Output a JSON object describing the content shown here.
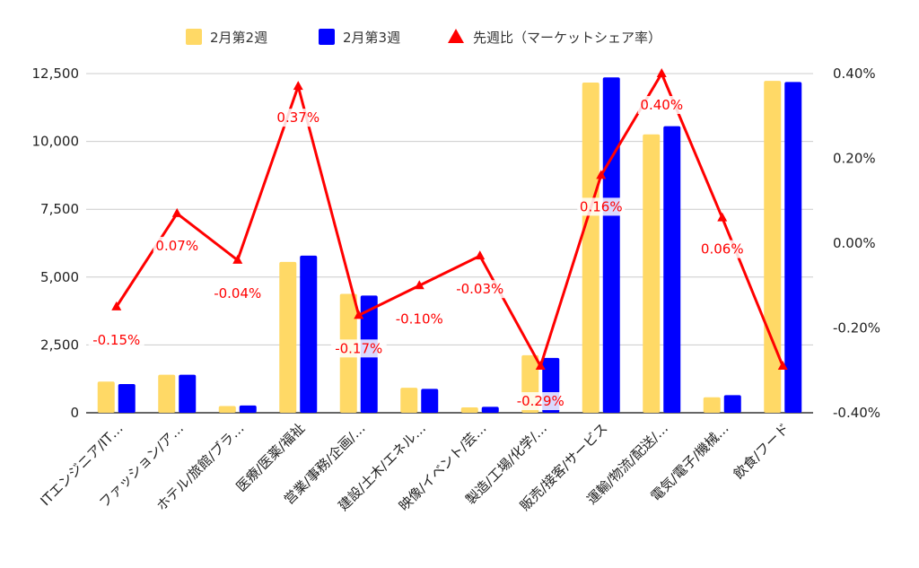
{
  "chart_data": {
    "type": "bar",
    "categories": [
      "ITエンジニア/IT…",
      "ファッション/ア…",
      "ホテル/旅館/ブラ…",
      "医療/医薬/福祉",
      "営業/事務/企画/…",
      "建設/土木/エネル…",
      "映像/イベント/芸…",
      "製造/工場/化学/…",
      "販売/接客/サービス",
      "運輸/物流/配送/…",
      "電気/電子/機械…",
      "飲食/フード"
    ],
    "series": [
      {
        "name": "2月第2週",
        "color": "#ffd966",
        "axis": "left",
        "type": "bar",
        "values": [
          1150,
          1400,
          250,
          5560,
          4380,
          920,
          200,
          2120,
          12170,
          10260,
          570,
          12230
        ]
      },
      {
        "name": "2月第3週",
        "color": "#0000ff",
        "axis": "left",
        "type": "bar",
        "values": [
          1060,
          1400,
          270,
          5790,
          4320,
          880,
          220,
          2020,
          12360,
          10560,
          650,
          12190
        ]
      },
      {
        "name": "先週比（マーケットシェア率）",
        "color": "#ff0000",
        "axis": "right",
        "type": "line",
        "values": [
          -0.15,
          0.07,
          -0.04,
          0.37,
          -0.17,
          -0.1,
          -0.03,
          -0.29,
          0.16,
          0.4,
          0.06,
          -0.29
        ],
        "labels": [
          "-0.15%",
          "0.07%",
          "-0.04%",
          "0.37%",
          "-0.17%",
          "-0.10%",
          "-0.03%",
          "-0.29%",
          "0.16%",
          "0.40%",
          "0.06%",
          ""
        ]
      }
    ],
    "y_left": {
      "min": 0,
      "max": 12500,
      "ticks": [
        "0",
        "2,500",
        "5,000",
        "7,500",
        "10,000",
        "12,500"
      ],
      "tick_values": [
        0,
        2500,
        5000,
        7500,
        10000,
        12500
      ]
    },
    "y_right": {
      "min": -0.4,
      "max": 0.4,
      "ticks": [
        "-0.40%",
        "-0.20%",
        "0.00%",
        "0.20%",
        "0.40%"
      ],
      "tick_values": [
        -0.4,
        -0.2,
        0,
        0.2,
        0.4
      ]
    },
    "legend_position": "top",
    "grid": true
  }
}
